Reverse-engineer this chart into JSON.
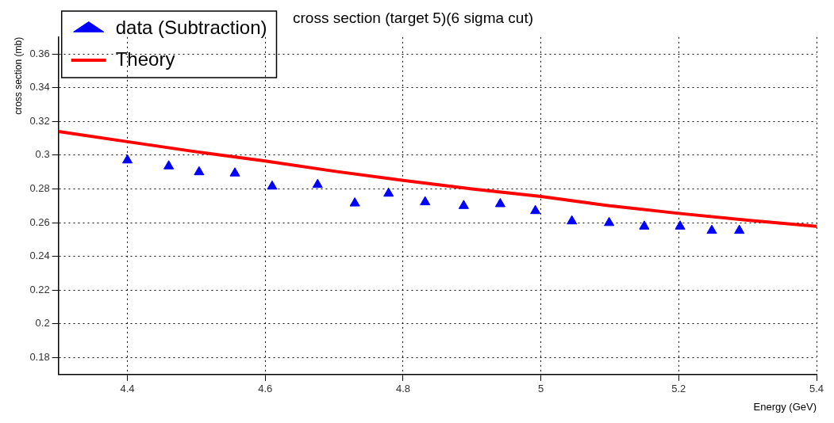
{
  "chart_data": {
    "type": "scatter",
    "title": "cross section (target 5)(6 sigma cut)",
    "xlabel": "Energy (GeV)",
    "ylabel": "cross section (mb)",
    "xlim": [
      4.3,
      5.4
    ],
    "xticks": [
      4.4,
      4.6,
      4.8,
      5,
      5.2,
      5.4
    ],
    "ylim": [
      0.17,
      0.37
    ],
    "yticks": [
      0.18,
      0.2,
      0.22,
      0.24,
      0.26,
      0.28,
      0.3,
      0.32,
      0.34,
      0.36
    ],
    "grid": true,
    "legend": "top left",
    "marker": "triangle",
    "series": [
      {
        "name": "data (Subtraction)",
        "type": "scatter",
        "color": "#0000ff",
        "x": [
          4.4,
          4.46,
          4.504,
          4.556,
          4.61,
          4.676,
          4.73,
          4.779,
          4.832,
          4.888,
          4.941,
          4.992,
          5.045,
          5.099,
          5.15,
          5.202,
          5.248,
          5.288
        ],
        "values": [
          0.297,
          0.2935,
          0.29,
          0.2893,
          0.2815,
          0.2825,
          0.2715,
          0.2773,
          0.2722,
          0.27,
          0.2711,
          0.267,
          0.2609,
          0.2599,
          0.2578,
          0.2578,
          0.2553,
          0.2553
        ]
      },
      {
        "name": "Theory",
        "type": "line",
        "color": "#ff0000",
        "marker": "none",
        "x": [
          4.3,
          4.4,
          4.5,
          4.6,
          4.7,
          4.8,
          4.9,
          5.0,
          5.1,
          5.2,
          5.3,
          5.4
        ],
        "values": [
          0.314,
          0.308,
          0.302,
          0.2965,
          0.2905,
          0.285,
          0.28,
          0.2755,
          0.27,
          0.2655,
          0.2615,
          0.2578
        ]
      }
    ]
  }
}
